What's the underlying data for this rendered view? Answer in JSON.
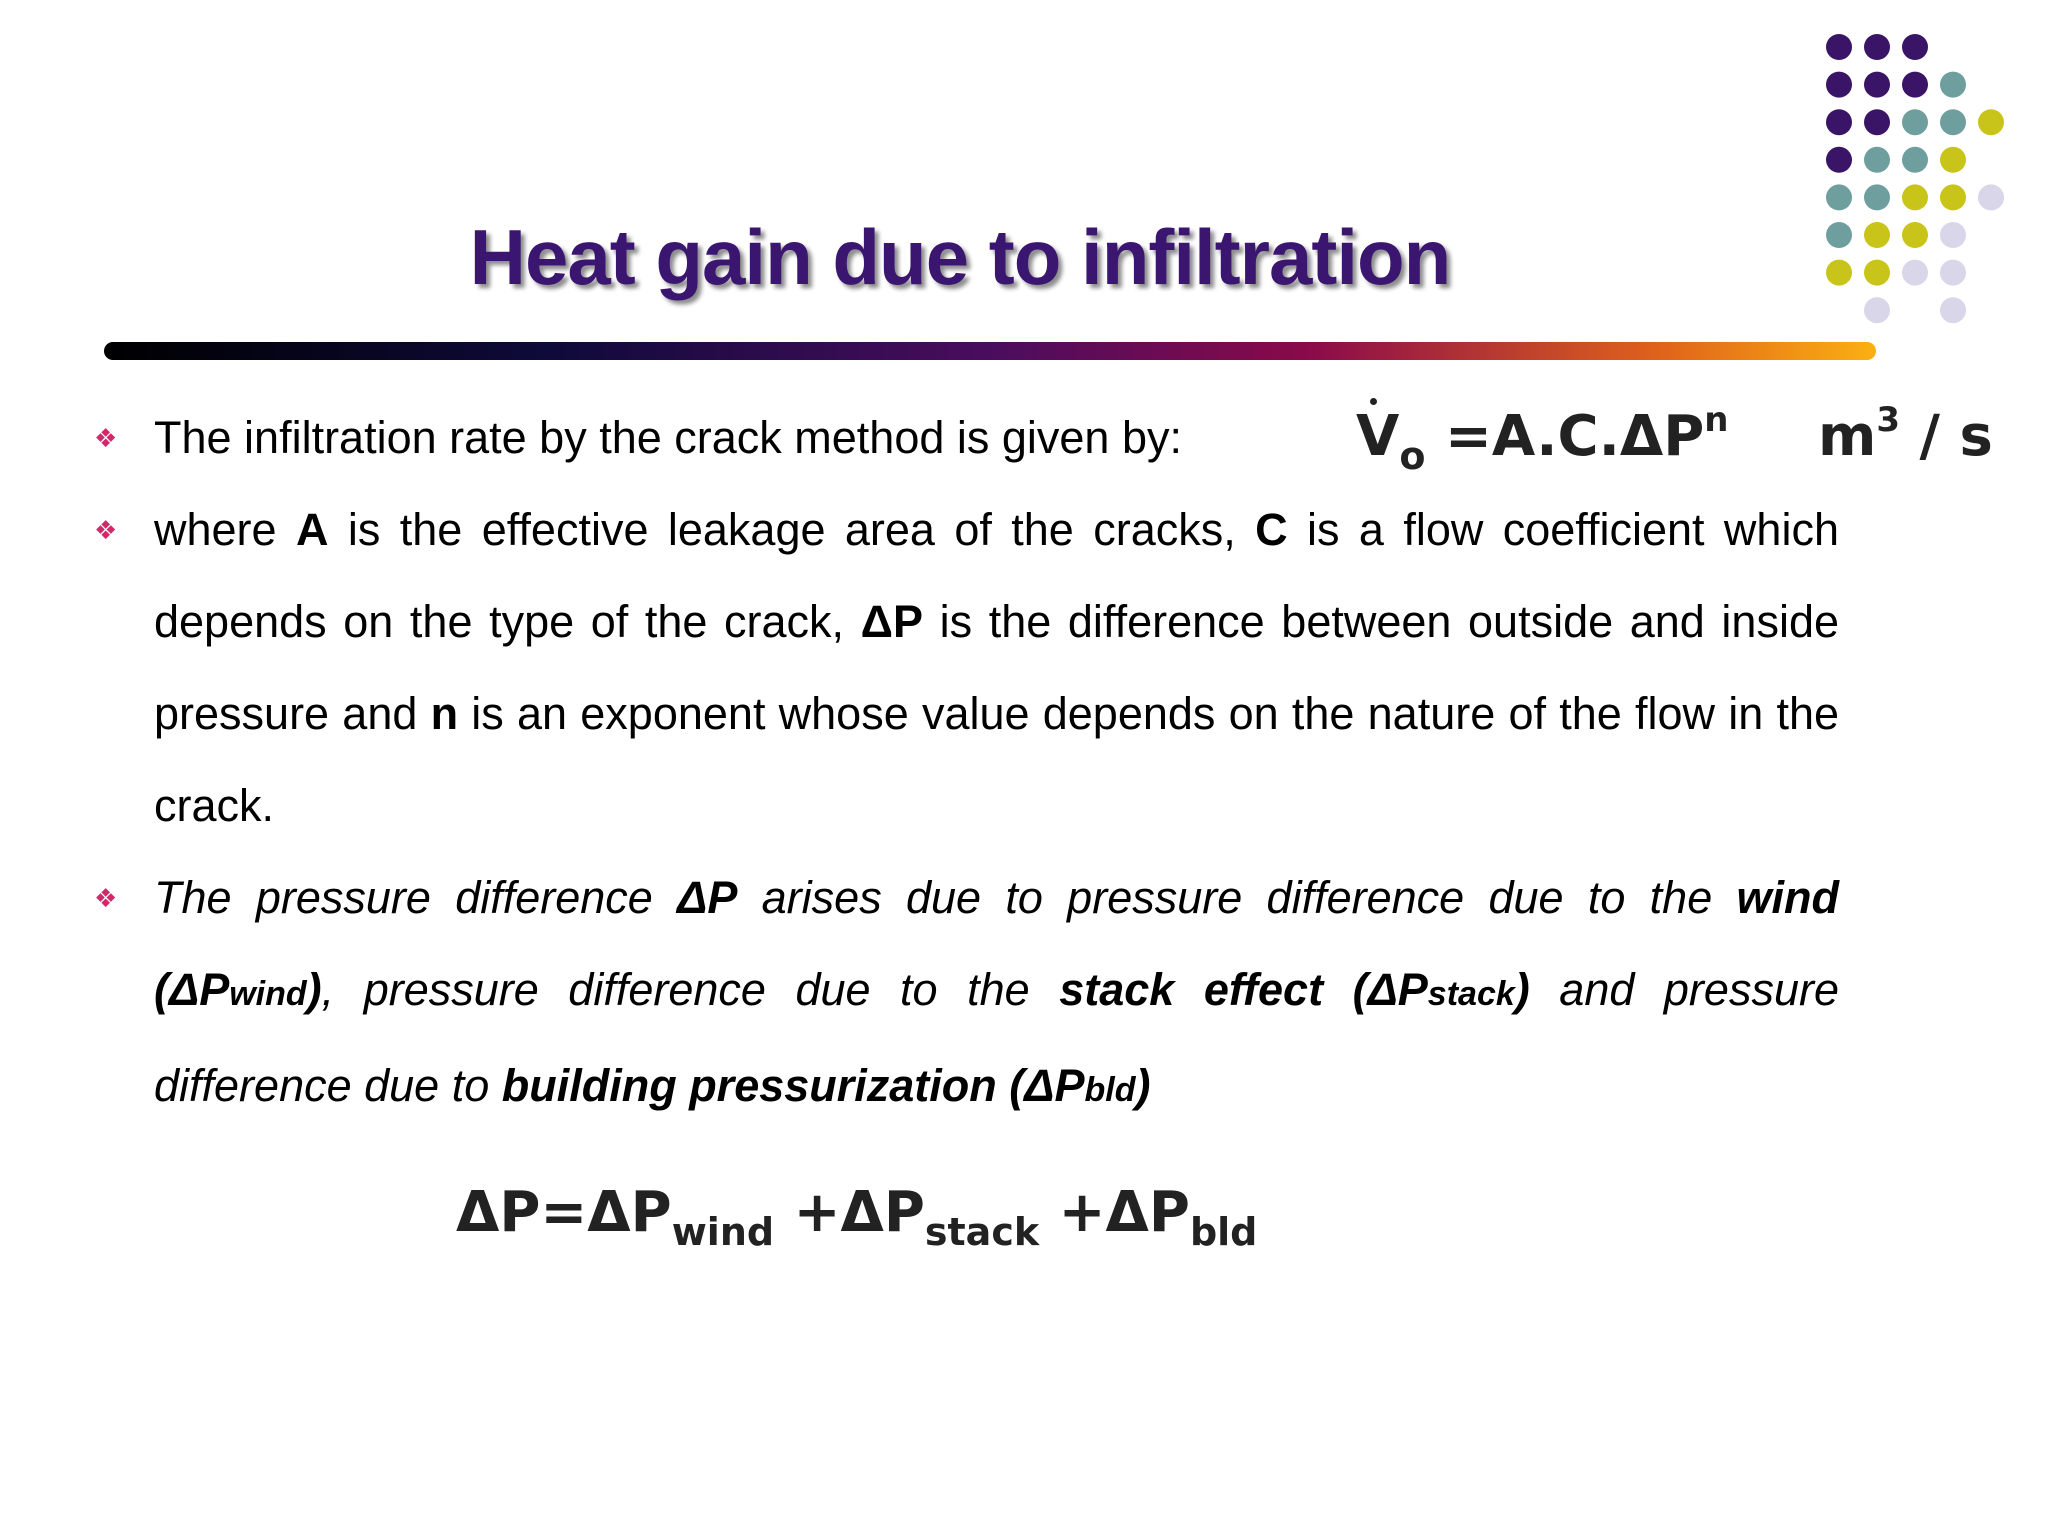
{
  "title": "Heat gain due to infiltration",
  "bullets": [
    {
      "runs": [
        "The infiltration rate by the crack method is given by:"
      ]
    },
    {
      "runs": [
        "where ",
        "A",
        " is the effective leakage area of the cracks, ",
        "C",
        " is a flow coefficient which depends on the type of the crack, ",
        "ΔP",
        " is the difference between outside and inside pressure and ",
        "n",
        " is an exponent whose value depends on the nature of the flow in the crack."
      ]
    },
    {
      "runs": [
        "The pressure difference ",
        "ΔP",
        " arises due to pressure difference due to the ",
        "wind (ΔP",
        "wind",
        ")",
        ", pressure difference due to the ",
        "stack effect (ΔP",
        "stack",
        ")",
        " and pressure difference due to ",
        "building pressurization (ΔP",
        "bld",
        ")"
      ]
    }
  ],
  "formula1": {
    "parts": [
      "V",
      "o",
      "=A.C.ΔP",
      "n",
      "m",
      "3",
      "/ s"
    ]
  },
  "formula2": {
    "parts": [
      "ΔP=ΔP",
      "wind",
      "+ΔP",
      "stack",
      "+ΔP",
      "bld"
    ]
  }
}
